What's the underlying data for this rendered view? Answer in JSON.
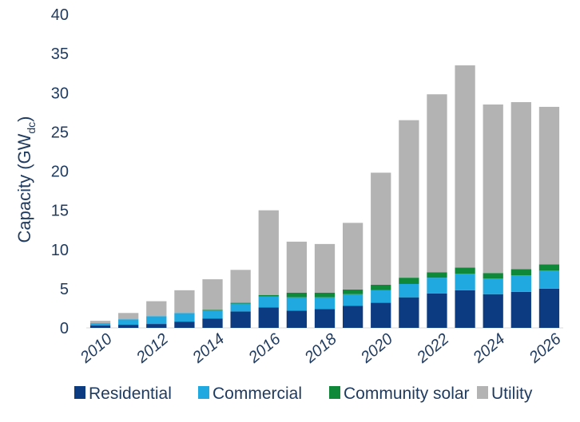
{
  "chart_data": {
    "type": "bar",
    "stacked": true,
    "title": "",
    "xlabel": "",
    "ylabel": "Capacity (GW",
    "ylabel_subscript": "dc",
    "ylabel_close": ")",
    "ylim": [
      0,
      40
    ],
    "yticks": [
      0,
      5,
      10,
      15,
      20,
      25,
      30,
      35,
      40
    ],
    "categories": [
      "2010",
      "2011",
      "2012",
      "2013",
      "2014",
      "2015",
      "2016",
      "2017",
      "2018",
      "2019",
      "2020",
      "2021",
      "2022",
      "2023",
      "2024",
      "2025",
      "2026"
    ],
    "xtick_labels": [
      "2010",
      "2012",
      "2014",
      "2016",
      "2018",
      "2020",
      "2022",
      "2024",
      "2026"
    ],
    "legend_position": "bottom",
    "series": [
      {
        "name": "Residential",
        "color": "#0d3b82",
        "values": [
          0.3,
          0.4,
          0.5,
          0.8,
          1.2,
          2.1,
          2.6,
          2.2,
          2.4,
          2.8,
          3.2,
          3.9,
          4.4,
          4.8,
          4.3,
          4.6,
          5.0
        ]
      },
      {
        "name": "Commercial",
        "color": "#20a8e0",
        "values": [
          0.3,
          0.7,
          1.0,
          1.1,
          1.0,
          1.0,
          1.4,
          1.7,
          1.5,
          1.5,
          1.6,
          1.7,
          2.0,
          2.1,
          2.0,
          2.1,
          2.3
        ]
      },
      {
        "name": "Community solar",
        "color": "#10883a",
        "values": [
          0.0,
          0.0,
          0.0,
          0.0,
          0.1,
          0.1,
          0.2,
          0.6,
          0.6,
          0.6,
          0.7,
          0.8,
          0.7,
          0.8,
          0.7,
          0.8,
          0.8
        ]
      },
      {
        "name": "Utility",
        "color": "#b3b3b3",
        "values": [
          0.3,
          0.8,
          1.9,
          2.9,
          3.9,
          4.2,
          10.8,
          6.5,
          6.2,
          8.5,
          14.3,
          20.1,
          22.7,
          25.8,
          21.5,
          21.3,
          20.1
        ]
      }
    ]
  }
}
